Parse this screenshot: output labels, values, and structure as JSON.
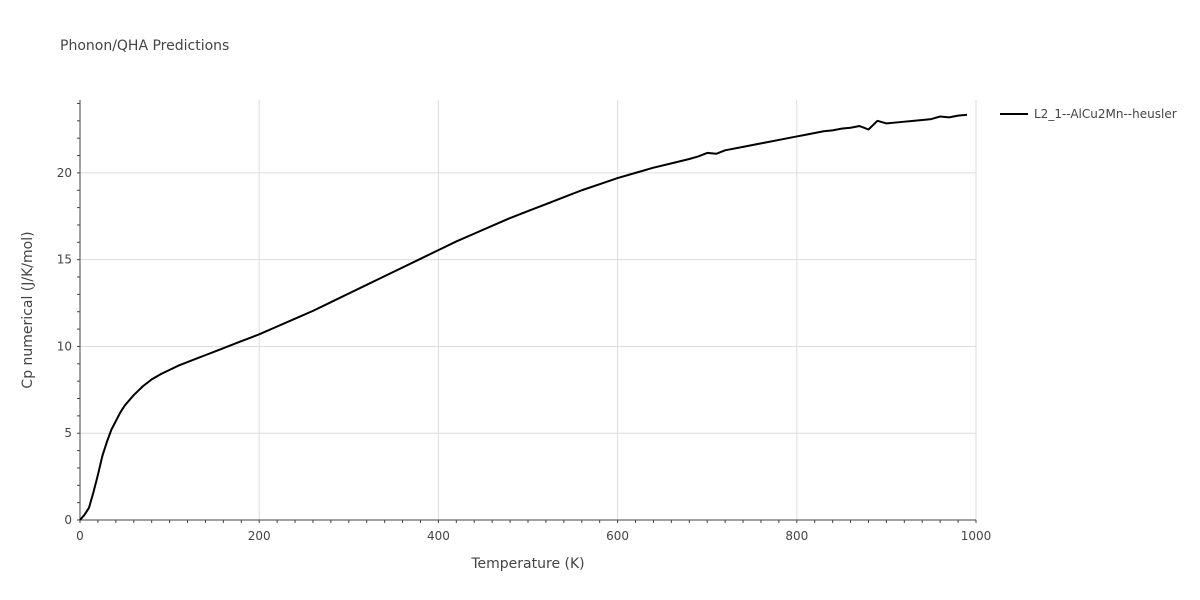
{
  "chart_data": {
    "type": "line",
    "title": "Phonon/QHA Predictions",
    "xlabel": "Temperature (K)",
    "ylabel": "Cp numerical (J/K/mol)",
    "xlim": [
      0,
      1000
    ],
    "ylim": [
      0,
      24.2
    ],
    "xticks": [
      0,
      200,
      400,
      600,
      800,
      1000
    ],
    "yticks": [
      0,
      5,
      10,
      15,
      20
    ],
    "grid": true,
    "legend_position": "top-right",
    "series": [
      {
        "name": "L2_1--AlCu2Mn--heusler",
        "color": "#000000",
        "x": [
          0,
          5,
          10,
          15,
          20,
          25,
          30,
          35,
          40,
          45,
          50,
          60,
          70,
          80,
          90,
          100,
          110,
          120,
          130,
          140,
          150,
          160,
          170,
          180,
          190,
          200,
          220,
          240,
          260,
          280,
          300,
          320,
          340,
          360,
          380,
          400,
          420,
          440,
          460,
          480,
          500,
          520,
          540,
          560,
          580,
          600,
          620,
          640,
          660,
          680,
          690,
          700,
          710,
          720,
          740,
          760,
          780,
          800,
          810,
          820,
          830,
          840,
          850,
          860,
          870,
          880,
          890,
          900,
          910,
          920,
          930,
          940,
          950,
          960,
          970,
          980,
          990
        ],
        "y": [
          0,
          0.3,
          0.7,
          1.6,
          2.6,
          3.7,
          4.5,
          5.2,
          5.7,
          6.2,
          6.6,
          7.2,
          7.7,
          8.1,
          8.4,
          8.65,
          8.9,
          9.1,
          9.3,
          9.5,
          9.7,
          9.9,
          10.1,
          10.3,
          10.5,
          10.7,
          11.15,
          11.6,
          12.05,
          12.55,
          13.05,
          13.55,
          14.05,
          14.55,
          15.05,
          15.55,
          16.05,
          16.5,
          16.95,
          17.4,
          17.8,
          18.2,
          18.6,
          19.0,
          19.35,
          19.7,
          20.0,
          20.3,
          20.55,
          20.8,
          20.95,
          21.15,
          21.1,
          21.3,
          21.5,
          21.7,
          21.9,
          22.1,
          22.2,
          22.3,
          22.4,
          22.45,
          22.55,
          22.6,
          22.7,
          22.5,
          23.0,
          22.85,
          22.9,
          22.95,
          23.0,
          23.05,
          23.1,
          23.25,
          23.2,
          23.3,
          23.35
        ]
      }
    ]
  }
}
